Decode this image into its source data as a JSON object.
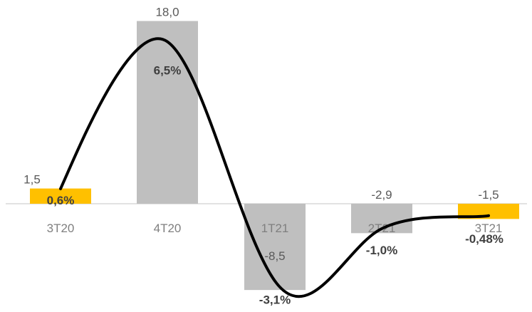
{
  "chart_data": {
    "type": "bar",
    "categories": [
      "3T20",
      "4T20",
      "1T21",
      "2T21",
      "3T21"
    ],
    "series": [
      {
        "values": [
          1.5,
          18.0,
          -8.5,
          -2.9,
          -1.5
        ],
        "labels": [
          "1,5",
          "18,0",
          "-8,5",
          "-2,9",
          "-1,5"
        ],
        "colors": [
          "#FFC000",
          "#BFBFBF",
          "#BFBFBF",
          "#BFBFBF",
          "#FFC000"
        ]
      },
      {
        "type": "line",
        "values": [
          0.6,
          6.5,
          -3.1,
          -1.0,
          -0.48
        ],
        "labels": [
          "0,6%",
          "6,5%",
          "-3,1%",
          "-1,0%",
          "-0,48%"
        ],
        "color": "#000000"
      }
    ],
    "ylim": [
      -9.5,
      18.5
    ],
    "grid": false,
    "legend": "none"
  }
}
